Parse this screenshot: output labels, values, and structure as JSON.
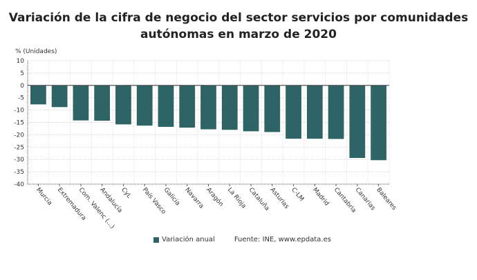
{
  "title": "Variación de la cifra de negocio del sector servicios por comunidades autónomas en marzo de 2020",
  "source": "Fuente: INE, www.epdata.es",
  "chart_data": {
    "type": "bar",
    "title": "Variación de la cifra de negocio del sector servicios por comunidades autónomas en marzo de 2020",
    "ylabel": "% (Unidades)",
    "xlabel": "",
    "ylim": [
      -40,
      10
    ],
    "yticks": [
      10,
      5,
      0,
      -5,
      -10,
      -15,
      -20,
      -25,
      -30,
      -35,
      -40
    ],
    "grid": true,
    "legend_position": "bottom",
    "color": "#2f6466",
    "categories": [
      "Murcia",
      "Extremadura",
      "Com. Valenc (...)",
      "Andalucía",
      "CyL",
      "País Vasco",
      "Galicia",
      "Navarra",
      "Aragón",
      "La Rioja",
      "Cataluña",
      "Asturias",
      "C-LM",
      "Madrid",
      "Cantabria",
      "Canarias",
      "Baleares"
    ],
    "series": [
      {
        "name": "Variación anual",
        "values": [
          -7.7,
          -8.8,
          -14.2,
          -14.3,
          -15.8,
          -16.3,
          -16.8,
          -17.1,
          -17.8,
          -18.0,
          -18.6,
          -18.9,
          -21.6,
          -21.6,
          -21.7,
          -29.4,
          -30.3
        ]
      }
    ]
  }
}
